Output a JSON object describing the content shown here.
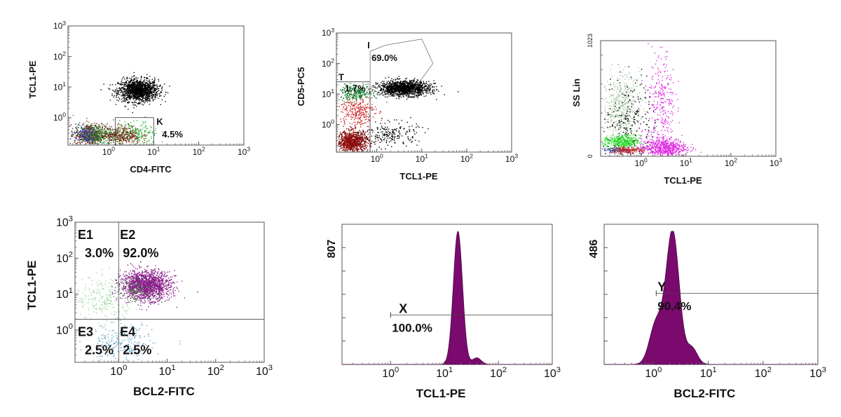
{
  "chart_data": [
    {
      "id": "p1",
      "type": "scatter",
      "xlabel": "CD4-FITC",
      "ylabel": "TCL1-PE",
      "x_scale": "log",
      "y_scale": "log",
      "xlim_decades": [
        -0.9,
        3
      ],
      "ylim_decades": [
        -0.9,
        3
      ],
      "x_ticks": [
        "10^0",
        "10^1",
        "10^2",
        "10^3"
      ],
      "y_ticks": [
        "10^0",
        "10^1",
        "10^2",
        "10^3"
      ],
      "gates": [
        {
          "type": "rect",
          "name": "K",
          "percent": "4.5%",
          "x": [
            0.15,
            1.0
          ],
          "y": [
            -0.9,
            0.0
          ]
        }
      ],
      "populations": [
        {
          "color": "#000000",
          "cx": 0.65,
          "cy": 0.9,
          "sx": 0.22,
          "sy": 0.18,
          "n": 1400
        },
        {
          "color": "#7a1010",
          "cx": -0.4,
          "cy": -0.55,
          "sx": 0.18,
          "sy": 0.18,
          "n": 500
        },
        {
          "color": "#1a9a2a",
          "cx": -0.3,
          "cy": -0.55,
          "sx": 0.25,
          "sy": 0.18,
          "n": 300
        },
        {
          "color": "#2a3aa8",
          "cx": -0.55,
          "cy": -0.55,
          "sx": 0.15,
          "sy": 0.15,
          "n": 120
        },
        {
          "color": "#7a1010",
          "cx": 0.3,
          "cy": -0.55,
          "sx": 0.2,
          "sy": 0.15,
          "n": 300
        },
        {
          "color": "#3ab840",
          "cx": 0.6,
          "cy": -0.5,
          "sx": 0.25,
          "sy": 0.2,
          "n": 200
        }
      ]
    },
    {
      "id": "p2",
      "type": "scatter",
      "xlabel": "TCL1-PE",
      "ylabel": "CD5-PC5",
      "x_scale": "log",
      "y_scale": "log",
      "xlim_decades": [
        -0.9,
        3
      ],
      "ylim_decades": [
        -0.9,
        3
      ],
      "x_ticks": [
        "10^0",
        "10^1",
        "10^2",
        "10^3"
      ],
      "y_ticks": [
        "10^0",
        "10^1",
        "10^2",
        "10^3"
      ],
      "gates": [
        {
          "type": "rect",
          "name": "T",
          "percent": "1.7%",
          "x": [
            -0.9,
            -0.15
          ],
          "y": [
            -0.9,
            1.4
          ]
        },
        {
          "type": "polygon",
          "name": "I",
          "percent": "69.0%",
          "points": [
            [
              -0.15,
              1.2
            ],
            [
              -0.15,
              2.4
            ],
            [
              0.2,
              2.6
            ],
            [
              1.0,
              2.8
            ],
            [
              1.25,
              2.0
            ],
            [
              0.75,
              1.0
            ],
            [
              0.2,
              0.9
            ]
          ]
        }
      ],
      "populations": [
        {
          "color": "#000000",
          "cx": 0.6,
          "cy": 1.2,
          "sx": 0.28,
          "sy": 0.12,
          "n": 1400
        },
        {
          "color": "#8a0b0b",
          "cx": -0.55,
          "cy": -0.55,
          "sx": 0.18,
          "sy": 0.18,
          "n": 900
        },
        {
          "color": "#0b7a2a",
          "cx": -0.5,
          "cy": 1.05,
          "sx": 0.2,
          "sy": 0.12,
          "n": 250
        },
        {
          "color": "#cc2222",
          "cx": -0.45,
          "cy": 0.45,
          "sx": 0.2,
          "sy": 0.25,
          "n": 250
        },
        {
          "color": "#000000",
          "cx": 0.3,
          "cy": -0.3,
          "sx": 0.3,
          "sy": 0.2,
          "n": 200
        }
      ]
    },
    {
      "id": "p3",
      "type": "scatter",
      "xlabel": "TCL1-PE",
      "ylabel": "SS Lin",
      "x_scale": "log",
      "y_scale": "linear",
      "xlim_decades": [
        -0.9,
        3
      ],
      "ylim": [
        0,
        1023
      ],
      "x_ticks": [
        "10^0",
        "10^1",
        "10^2",
        "10^3"
      ],
      "y_ticks": [
        "0",
        "1023"
      ],
      "gates": [],
      "populations": [
        {
          "color": "#a8c8a8",
          "cx": -0.45,
          "cy": 430,
          "sx": 0.2,
          "sy": 150,
          "n": 500
        },
        {
          "color": "#000000",
          "cx": -0.25,
          "cy": 300,
          "sx": 0.3,
          "sy": 200,
          "n": 250
        },
        {
          "color": "#22dd22",
          "cx": -0.45,
          "cy": 130,
          "sx": 0.2,
          "sy": 30,
          "n": 350
        },
        {
          "color": "#2a3aa8",
          "cx": -0.5,
          "cy": 60,
          "sx": 0.18,
          "sy": 15,
          "n": 100
        },
        {
          "color": "#cc2222",
          "cx": -0.3,
          "cy": 60,
          "sx": 0.2,
          "sy": 15,
          "n": 150
        },
        {
          "color": "#e028e0",
          "cx": 0.5,
          "cy": 80,
          "sx": 0.25,
          "sy": 40,
          "n": 600
        },
        {
          "color": "#e028e0",
          "cx": 0.45,
          "cy": 450,
          "sx": 0.15,
          "sy": 250,
          "n": 300
        }
      ]
    },
    {
      "id": "p4",
      "type": "scatter",
      "xlabel": "BCL2-FITC",
      "ylabel": "TCL1-PE",
      "x_scale": "log",
      "y_scale": "log",
      "xlim_decades": [
        -0.9,
        3
      ],
      "ylim_decades": [
        -0.9,
        3
      ],
      "x_ticks": [
        "10^0",
        "10^1",
        "10^2",
        "10^3"
      ],
      "y_ticks": [
        "10^0",
        "10^1",
        "10^2",
        "10^3"
      ],
      "quadrant": {
        "x": 0.0,
        "y": 0.3
      },
      "gates": [
        {
          "type": "quadrant",
          "name": "E1",
          "percent": "3.0%"
        },
        {
          "type": "quadrant",
          "name": "E2",
          "percent": "92.0%"
        },
        {
          "type": "quadrant",
          "name": "E3",
          "percent": "2.5%"
        },
        {
          "type": "quadrant",
          "name": "E4",
          "percent": "2.5%"
        }
      ],
      "populations": [
        {
          "color": "#8a1f8a",
          "cx": 0.55,
          "cy": 1.25,
          "sx": 0.25,
          "sy": 0.2,
          "n": 1600
        },
        {
          "color": "#a3d8a3",
          "cx": -0.3,
          "cy": 0.9,
          "sx": 0.3,
          "sy": 0.3,
          "n": 250
        },
        {
          "color": "#6aa8c8",
          "cx": 0.0,
          "cy": -0.4,
          "sx": 0.35,
          "sy": 0.3,
          "n": 250
        },
        {
          "color": "#2a8a2a",
          "cx": 0.4,
          "cy": 1.1,
          "sx": 0.2,
          "sy": 0.15,
          "n": 80
        }
      ]
    },
    {
      "id": "p5",
      "type": "histogram",
      "xlabel": "TCL1-PE",
      "ylabel": "",
      "x_scale": "log",
      "xlim_decades": [
        -0.9,
        3
      ],
      "ymax": 807,
      "x_ticks": [
        "10^0",
        "10^1",
        "10^2",
        "10^3"
      ],
      "y_ticks": [
        "807"
      ],
      "fill": "#7a0a6e",
      "peaks": [
        {
          "center": 1.25,
          "sigma": 0.085,
          "height": 807
        },
        {
          "center": 1.6,
          "sigma": 0.08,
          "height": 40
        }
      ],
      "gates": [
        {
          "type": "marker",
          "name": "X",
          "percent": "100.0%",
          "x": [
            0.0,
            3.0
          ],
          "level": 300
        }
      ]
    },
    {
      "id": "p6",
      "type": "histogram",
      "xlabel": "BCL2-FITC",
      "ylabel": "",
      "x_scale": "log",
      "xlim_decades": [
        -0.9,
        3
      ],
      "ymax": 486,
      "x_ticks": [
        "10^0",
        "10^1",
        "10^2",
        "10^3"
      ],
      "y_ticks": [
        "486"
      ],
      "fill": "#7a0a6e",
      "peaks": [
        {
          "center": 0.35,
          "sigma": 0.12,
          "height": 486
        },
        {
          "center": 0.05,
          "sigma": 0.12,
          "height": 150
        },
        {
          "center": 0.7,
          "sigma": 0.1,
          "height": 60
        }
      ],
      "gates": [
        {
          "type": "marker",
          "name": "Y",
          "percent": "90.4%",
          "x": [
            0.05,
            3.0
          ],
          "level": 260
        }
      ]
    }
  ]
}
